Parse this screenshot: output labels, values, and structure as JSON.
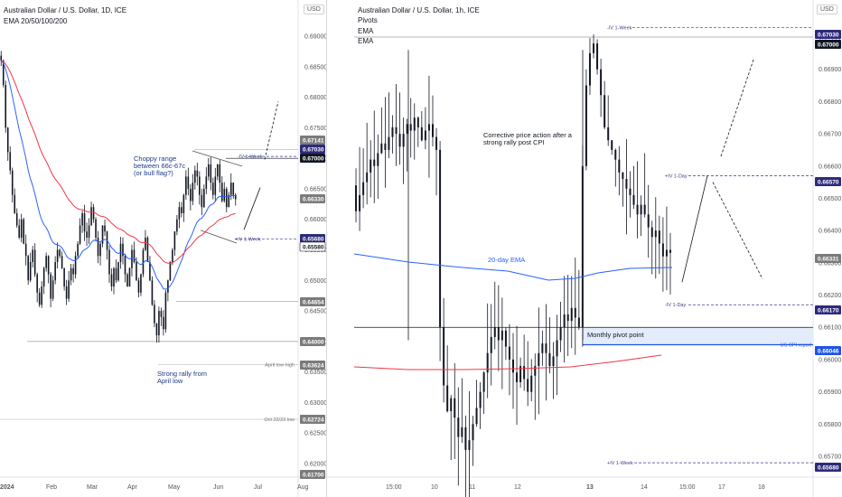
{
  "left": {
    "title": "Australian Dollar / U.S. Dollar, 1D, ICE",
    "indicator": "EMA 20/50/100/200",
    "currency": "USD",
    "y_ticks": [
      "0.69000",
      "0.68500",
      "0.68000",
      "0.67500",
      "0.67000",
      "0.66500",
      "0.66000",
      "0.65500",
      "0.65000",
      "0.64500",
      "0.64000",
      "0.63500",
      "0.63000",
      "0.62500",
      "0.62000"
    ],
    "x_ticks": [
      "2024",
      "Feb",
      "Mar",
      "Apr",
      "May",
      "Jun",
      "Jul",
      "Aug"
    ],
    "annotations": {
      "choppy": [
        "Choppy range",
        "between 66c-67c",
        "(or bull flag?)"
      ],
      "rally": [
        "Strong rally from",
        "April low"
      ],
      "iv_week_upper": "-IV 1-Week",
      "iv_week_lower": "+IV 1-Week",
      "april_low_high": "April low high",
      "oct_low": "Oct 22/23 low"
    },
    "price_tags": [
      {
        "text": "0.67141",
        "kind": "gray"
      },
      {
        "text": "0.67030",
        "kind": "navy"
      },
      {
        "text": "0.67000",
        "kind": "black"
      },
      {
        "text": "0.66330",
        "kind": "gray"
      },
      {
        "text": "0.65680",
        "kind": "navy"
      },
      {
        "text": "0.65580",
        "kind": "white"
      },
      {
        "text": "0.64654",
        "kind": "gray"
      },
      {
        "text": "0.64000",
        "kind": "gray"
      },
      {
        "text": "0.63624",
        "kind": "gray"
      },
      {
        "text": "0.62724",
        "kind": "gray"
      },
      {
        "text": "0.61700",
        "kind": "gray"
      }
    ]
  },
  "right": {
    "title": "Australian Dollar / U.S. Dollar, 1h, ICE",
    "legend": [
      "Pivots",
      "EMA",
      "EMA"
    ],
    "currency": "USD",
    "y_ticks": [
      "0.67000",
      "0.66900",
      "0.66800",
      "0.66700",
      "0.66600",
      "0.66500",
      "0.66400",
      "0.66300",
      "0.66200",
      "0.66100",
      "0.66000",
      "0.65900",
      "0.65800",
      "0.65700"
    ],
    "x_ticks": [
      "15:00",
      "10",
      "11",
      "12",
      "13",
      "14",
      "15:00",
      "17",
      "18"
    ],
    "annotations": {
      "corrective": [
        "Corrective price action after a",
        "strong rally post CPI"
      ],
      "ema20": "20-day EMA",
      "monthly_pivot": "Monthly pivot point",
      "iv_week_upper": "-IV 1-Week",
      "iv_day_upper": "+IV 1-Day",
      "iv_day_lower": "-IV 1-Day",
      "iv_week_lower": "+IV 1-Week",
      "cpi": "US CPI report"
    },
    "price_tags": [
      {
        "text": "0.67030",
        "kind": "navy"
      },
      {
        "text": "0.67000",
        "kind": "black"
      },
      {
        "text": "0.66570",
        "kind": "navy"
      },
      {
        "text": "0.66331",
        "kind": "gray"
      },
      {
        "text": "0.66170",
        "kind": "navy"
      },
      {
        "text": "0.66046",
        "kind": "blue"
      },
      {
        "text": "0.65680",
        "kind": "navy"
      }
    ]
  },
  "colors": {
    "candle": "#131722",
    "ema_blue": "#2962ff",
    "ema_red": "#f23645",
    "navy_tag": "#2d2a7a",
    "pivot_blue": "#1e53e5",
    "dash": "#3a3a8c"
  },
  "chart_data": [
    {
      "type": "candlestick",
      "title": "Australian Dollar / U.S. Dollar, 1D, ICE",
      "x_range": [
        "2024",
        "Aug"
      ],
      "ylim": [
        0.617,
        0.695
      ],
      "key_levels": [
        0.67141,
        0.6703,
        0.67,
        0.6633,
        0.6568,
        0.6558,
        0.64654,
        0.64,
        0.63624,
        0.62724
      ],
      "approx_closes": [
        0.686,
        0.682,
        0.675,
        0.671,
        0.668,
        0.664,
        0.661,
        0.659,
        0.657,
        0.66,
        0.656,
        0.654,
        0.65,
        0.653,
        0.655,
        0.651,
        0.648,
        0.646,
        0.649,
        0.652,
        0.654,
        0.651,
        0.647,
        0.65,
        0.653,
        0.655,
        0.654,
        0.652,
        0.649,
        0.647,
        0.65,
        0.652,
        0.651,
        0.654,
        0.656,
        0.659,
        0.661,
        0.658,
        0.657,
        0.659,
        0.662,
        0.66,
        0.657,
        0.654,
        0.656,
        0.659,
        0.658,
        0.655,
        0.651,
        0.649,
        0.652,
        0.65,
        0.653,
        0.656,
        0.654,
        0.651,
        0.649,
        0.652,
        0.655,
        0.653,
        0.65,
        0.648,
        0.651,
        0.655,
        0.657,
        0.653,
        0.65,
        0.646,
        0.643,
        0.641,
        0.645,
        0.644,
        0.642,
        0.648,
        0.65,
        0.653,
        0.655,
        0.658,
        0.66,
        0.662,
        0.661,
        0.664,
        0.667,
        0.665,
        0.663,
        0.666,
        0.668,
        0.667,
        0.664,
        0.662,
        0.665,
        0.667,
        0.669,
        0.666,
        0.664,
        0.667,
        0.669,
        0.666,
        0.663,
        0.665,
        0.662,
        0.664,
        0.666,
        0.664,
        0.6633
      ],
      "series": [
        {
          "name": "EMA 20"
        },
        {
          "name": "EMA 50"
        }
      ]
    },
    {
      "type": "candlestick",
      "title": "Australian Dollar / U.S. Dollar, 1h, ICE",
      "x": [
        "15:00",
        "10",
        "11",
        "12",
        "13",
        "14",
        "15:00",
        "17",
        "18"
      ],
      "ylim": [
        0.6566,
        0.6707
      ],
      "key_levels": [
        0.6703,
        0.67,
        0.6657,
        0.6633,
        0.6617,
        0.66046,
        0.6568
      ],
      "approx_closes": [
        0.6646,
        0.6651,
        0.6655,
        0.6658,
        0.6662,
        0.666,
        0.6664,
        0.6667,
        0.6665,
        0.6669,
        0.6672,
        0.667,
        0.6666,
        0.667,
        0.6673,
        0.6671,
        0.6675,
        0.6672,
        0.6668,
        0.6671,
        0.6673,
        0.6669,
        0.6665,
        0.661,
        0.6592,
        0.6584,
        0.6588,
        0.6582,
        0.6576,
        0.6579,
        0.6572,
        0.6575,
        0.658,
        0.6585,
        0.659,
        0.6596,
        0.6602,
        0.6607,
        0.661,
        0.6606,
        0.6609,
        0.6604,
        0.66,
        0.6596,
        0.6593,
        0.6598,
        0.6594,
        0.659,
        0.6595,
        0.6598,
        0.6602,
        0.6605,
        0.6602,
        0.6598,
        0.6601,
        0.6606,
        0.661,
        0.6614,
        0.6612,
        0.6616,
        0.6613,
        0.661,
        0.666,
        0.6685,
        0.6695,
        0.6698,
        0.669,
        0.6682,
        0.6672,
        0.6668,
        0.6665,
        0.6662,
        0.6658,
        0.6656,
        0.6653,
        0.6651,
        0.6648,
        0.6645,
        0.6648,
        0.6645,
        0.6641,
        0.6638,
        0.664,
        0.6636,
        0.6632,
        0.6634,
        0.66331
      ],
      "series": [
        {
          "name": "EMA"
        },
        {
          "name": "EMA"
        }
      ]
    }
  ]
}
